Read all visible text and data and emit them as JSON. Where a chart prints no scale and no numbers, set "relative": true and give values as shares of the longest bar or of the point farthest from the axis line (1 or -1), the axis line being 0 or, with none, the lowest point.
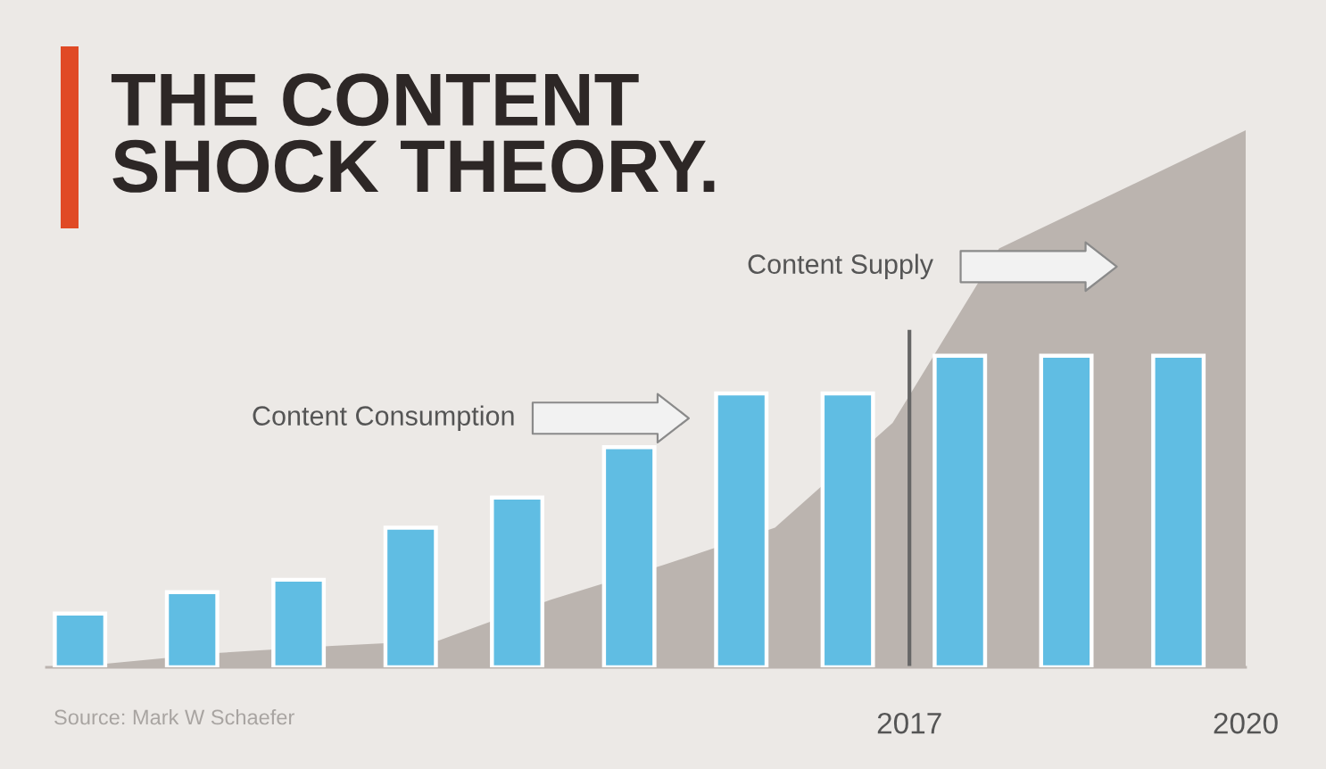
{
  "chart_data": {
    "type": "bar",
    "title": "THE CONTENT\nSHOCK THEORY.",
    "relative": true,
    "x": [
      2009.6,
      2010.6,
      2011.55,
      2012.55,
      2013.5,
      2014.5,
      2015.5,
      2016.45,
      2017.45,
      2018.4,
      2019.4
    ],
    "xlim": [
      2009.3,
      2020
    ],
    "xticks": [
      2017,
      2020
    ],
    "series": [
      {
        "name": "Content Supply",
        "type": "area",
        "color": "#bbb4af",
        "x": [
          2009.3,
          2009.85,
          2010.85,
          2011.85,
          2012.8,
          2013.8,
          2014.8,
          2015.8,
          2016.85,
          2017.8,
          2020
        ],
        "values": [
          0,
          0.007,
          0.027,
          0.04,
          0.05,
          0.126,
          0.19,
          0.26,
          0.455,
          0.78,
          1.0
        ]
      },
      {
        "name": "Content Consumption",
        "color": "#60bde3",
        "values": [
          0.1,
          0.14,
          0.163,
          0.26,
          0.316,
          0.41,
          0.51,
          0.51,
          0.58,
          0.58,
          0.58
        ]
      }
    ],
    "ref_lines": [
      {
        "axis": "x",
        "value": 2017,
        "color": "#666666"
      }
    ],
    "annotations": [
      "Source: Mark W Schaefer"
    ]
  }
}
